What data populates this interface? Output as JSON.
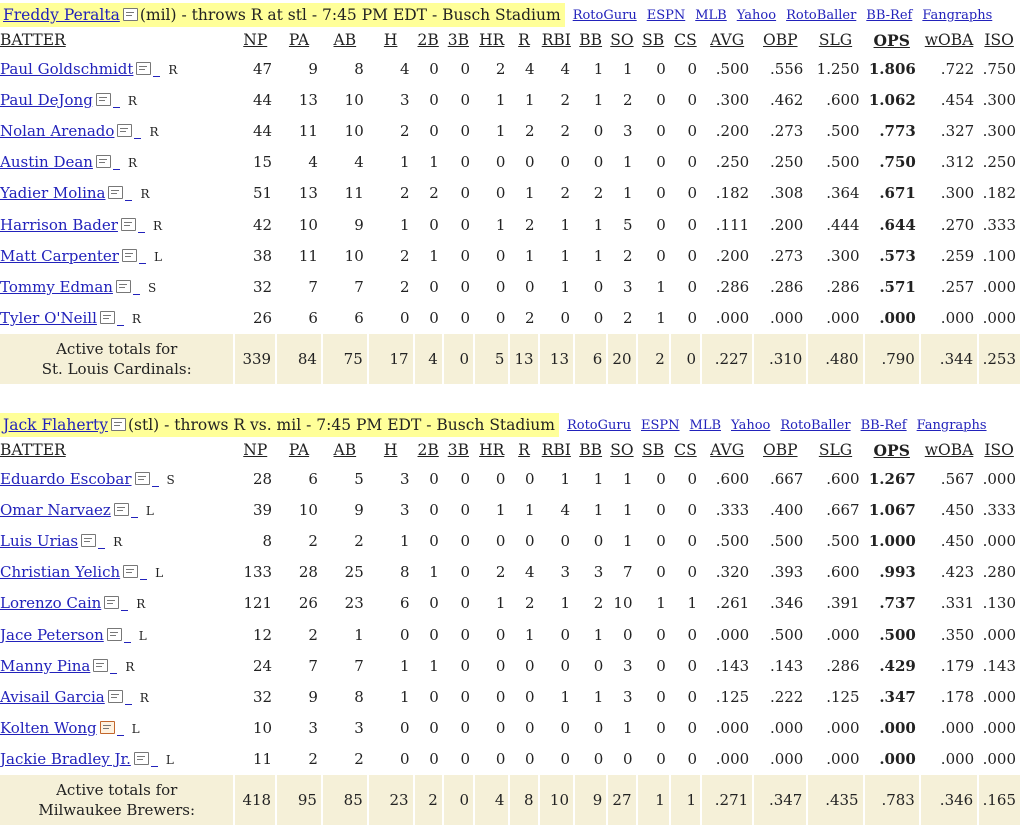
{
  "columns": [
    "BATTER",
    "NP",
    "PA",
    "AB",
    "H",
    "2B",
    "3B",
    "HR",
    "R",
    "RBI",
    "BB",
    "SO",
    "SB",
    "CS",
    "AVG",
    "OBP",
    "SLG",
    "OPS",
    "wOBA",
    "ISO"
  ],
  "links": [
    "RotoGuru",
    "ESPN",
    "MLB",
    "Yahoo",
    "RotoBaller",
    "BB-Ref",
    "Fangraphs"
  ],
  "games": [
    {
      "pitcher_name": "Freddy Peralta",
      "pitcher_desc": "(mil) - throws R at stl - 7:45 PM EDT - Busch Stadium",
      "batters": [
        {
          "name": "Paul Goldschmidt",
          "hand": "R",
          "stats": [
            "47",
            "9",
            "8",
            "4",
            "0",
            "0",
            "2",
            "4",
            "4",
            "1",
            "1",
            "0",
            "0",
            ".500",
            ".556",
            "1.250",
            "1.806",
            ".722",
            ".750"
          ]
        },
        {
          "name": "Paul DeJong",
          "hand": "R",
          "stats": [
            "44",
            "13",
            "10",
            "3",
            "0",
            "0",
            "1",
            "1",
            "2",
            "1",
            "2",
            "0",
            "0",
            ".300",
            ".462",
            ".600",
            "1.062",
            ".454",
            ".300"
          ]
        },
        {
          "name": "Nolan Arenado",
          "hand": "R",
          "stats": [
            "44",
            "11",
            "10",
            "2",
            "0",
            "0",
            "1",
            "2",
            "2",
            "0",
            "3",
            "0",
            "0",
            ".200",
            ".273",
            ".500",
            ".773",
            ".327",
            ".300"
          ]
        },
        {
          "name": "Austin Dean",
          "hand": "R",
          "stats": [
            "15",
            "4",
            "4",
            "1",
            "1",
            "0",
            "0",
            "0",
            "0",
            "0",
            "1",
            "0",
            "0",
            ".250",
            ".250",
            ".500",
            ".750",
            ".312",
            ".250"
          ]
        },
        {
          "name": "Yadier Molina",
          "hand": "R",
          "stats": [
            "51",
            "13",
            "11",
            "2",
            "2",
            "0",
            "0",
            "1",
            "2",
            "2",
            "1",
            "0",
            "0",
            ".182",
            ".308",
            ".364",
            ".671",
            ".300",
            ".182"
          ]
        },
        {
          "name": "Harrison Bader",
          "hand": "R",
          "stats": [
            "42",
            "10",
            "9",
            "1",
            "0",
            "0",
            "1",
            "2",
            "1",
            "1",
            "5",
            "0",
            "0",
            ".111",
            ".200",
            ".444",
            ".644",
            ".270",
            ".333"
          ]
        },
        {
          "name": "Matt Carpenter",
          "hand": "L",
          "stats": [
            "38",
            "11",
            "10",
            "2",
            "1",
            "0",
            "0",
            "1",
            "1",
            "1",
            "2",
            "0",
            "0",
            ".200",
            ".273",
            ".300",
            ".573",
            ".259",
            ".100"
          ]
        },
        {
          "name": "Tommy Edman",
          "hand": "S",
          "stats": [
            "32",
            "7",
            "7",
            "2",
            "0",
            "0",
            "0",
            "0",
            "1",
            "0",
            "3",
            "1",
            "0",
            ".286",
            ".286",
            ".286",
            ".571",
            ".257",
            ".000"
          ]
        },
        {
          "name": "Tyler O'Neill",
          "hand": "R",
          "stats": [
            "26",
            "6",
            "6",
            "0",
            "0",
            "0",
            "0",
            "2",
            "0",
            "0",
            "2",
            "1",
            "0",
            ".000",
            ".000",
            ".000",
            ".000",
            ".000",
            ".000"
          ]
        }
      ],
      "totals_label_1": "Active totals for",
      "totals_label_2": "St. Louis Cardinals:",
      "totals": [
        "339",
        "84",
        "75",
        "17",
        "4",
        "0",
        "5",
        "13",
        "13",
        "6",
        "20",
        "2",
        "0",
        ".227",
        ".310",
        ".480",
        ".790",
        ".344",
        ".253"
      ]
    },
    {
      "pitcher_name": "Jack Flaherty",
      "pitcher_desc": "(stl) - throws R vs. mil - 7:45 PM EDT - Busch Stadium",
      "batters": [
        {
          "name": "Eduardo Escobar",
          "hand": "S",
          "stats": [
            "28",
            "6",
            "5",
            "3",
            "0",
            "0",
            "0",
            "0",
            "1",
            "1",
            "1",
            "0",
            "0",
            ".600",
            ".667",
            ".600",
            "1.267",
            ".567",
            ".000"
          ]
        },
        {
          "name": "Omar Narvaez",
          "hand": "L",
          "stats": [
            "39",
            "10",
            "9",
            "3",
            "0",
            "0",
            "1",
            "1",
            "4",
            "1",
            "1",
            "0",
            "0",
            ".333",
            ".400",
            ".667",
            "1.067",
            ".450",
            ".333"
          ]
        },
        {
          "name": "Luis Urias",
          "hand": "R",
          "stats": [
            "8",
            "2",
            "2",
            "1",
            "0",
            "0",
            "0",
            "0",
            "0",
            "0",
            "1",
            "0",
            "0",
            ".500",
            ".500",
            ".500",
            "1.000",
            ".450",
            ".000"
          ]
        },
        {
          "name": "Christian Yelich",
          "hand": "L",
          "stats": [
            "133",
            "28",
            "25",
            "8",
            "1",
            "0",
            "2",
            "4",
            "3",
            "3",
            "7",
            "0",
            "0",
            ".320",
            ".393",
            ".600",
            ".993",
            ".423",
            ".280"
          ]
        },
        {
          "name": "Lorenzo Cain",
          "hand": "R",
          "stats": [
            "121",
            "26",
            "23",
            "6",
            "0",
            "0",
            "1",
            "2",
            "1",
            "2",
            "10",
            "1",
            "1",
            ".261",
            ".346",
            ".391",
            ".737",
            ".331",
            ".130"
          ]
        },
        {
          "name": "Jace Peterson",
          "hand": "L",
          "stats": [
            "12",
            "2",
            "1",
            "0",
            "0",
            "0",
            "0",
            "1",
            "0",
            "1",
            "0",
            "0",
            "0",
            ".000",
            ".500",
            ".000",
            ".500",
            ".350",
            ".000"
          ]
        },
        {
          "name": "Manny Pina",
          "hand": "R",
          "stats": [
            "24",
            "7",
            "7",
            "1",
            "1",
            "0",
            "0",
            "0",
            "0",
            "0",
            "3",
            "0",
            "0",
            ".143",
            ".143",
            ".286",
            ".429",
            ".179",
            ".143"
          ]
        },
        {
          "name": "Avisail Garcia",
          "hand": "R",
          "stats": [
            "32",
            "9",
            "8",
            "1",
            "0",
            "0",
            "0",
            "0",
            "1",
            "1",
            "3",
            "0",
            "0",
            ".125",
            ".222",
            ".125",
            ".347",
            ".178",
            ".000"
          ]
        },
        {
          "name": "Kolten Wong",
          "hand": "L",
          "stats": [
            "10",
            "3",
            "3",
            "0",
            "0",
            "0",
            "0",
            "0",
            "0",
            "0",
            "1",
            "0",
            "0",
            ".000",
            ".000",
            ".000",
            ".000",
            ".000",
            ".000"
          ]
        },
        {
          "name": "Jackie Bradley Jr.",
          "hand": "L",
          "stats": [
            "11",
            "2",
            "2",
            "0",
            "0",
            "0",
            "0",
            "0",
            "0",
            "0",
            "0",
            "0",
            "0",
            ".000",
            ".000",
            ".000",
            ".000",
            ".000",
            ".000"
          ]
        }
      ],
      "totals_label_1": "Active totals for",
      "totals_label_2": "Milwaukee Brewers:",
      "totals": [
        "418",
        "95",
        "85",
        "23",
        "2",
        "0",
        "4",
        "8",
        "10",
        "9",
        "27",
        "1",
        "1",
        ".271",
        ".347",
        ".435",
        ".783",
        ".346",
        ".165"
      ]
    }
  ]
}
